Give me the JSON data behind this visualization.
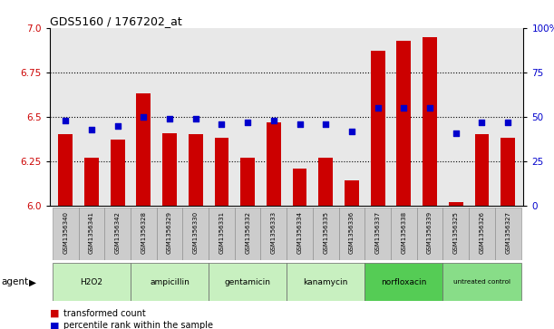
{
  "title": "GDS5160 / 1767202_at",
  "samples": [
    "GSM1356340",
    "GSM1356341",
    "GSM1356342",
    "GSM1356328",
    "GSM1356329",
    "GSM1356330",
    "GSM1356331",
    "GSM1356332",
    "GSM1356333",
    "GSM1356334",
    "GSM1356335",
    "GSM1356336",
    "GSM1356337",
    "GSM1356338",
    "GSM1356339",
    "GSM1356325",
    "GSM1356326",
    "GSM1356327"
  ],
  "bar_values": [
    6.4,
    6.27,
    6.37,
    6.63,
    6.41,
    6.4,
    6.38,
    6.27,
    6.47,
    6.21,
    6.27,
    6.14,
    6.87,
    6.93,
    6.95,
    6.02,
    6.4,
    6.38
  ],
  "blue_values": [
    48,
    43,
    45,
    50,
    49,
    49,
    46,
    47,
    48,
    46,
    46,
    42,
    55,
    55,
    55,
    41,
    47,
    47
  ],
  "agents": [
    {
      "label": "H2O2",
      "start": 0,
      "end": 3,
      "color": "#c8f0c0"
    },
    {
      "label": "ampicillin",
      "start": 3,
      "end": 6,
      "color": "#c8f0c0"
    },
    {
      "label": "gentamicin",
      "start": 6,
      "end": 9,
      "color": "#c8f0c0"
    },
    {
      "label": "kanamycin",
      "start": 9,
      "end": 12,
      "color": "#c8f0c0"
    },
    {
      "label": "norfloxacin",
      "start": 12,
      "end": 15,
      "color": "#55cc55"
    },
    {
      "label": "untreated control",
      "start": 15,
      "end": 18,
      "color": "#88dd88"
    }
  ],
  "ylim_left": [
    6.0,
    7.0
  ],
  "ylim_right": [
    0,
    100
  ],
  "yticks_left": [
    6.0,
    6.25,
    6.5,
    6.75,
    7.0
  ],
  "yticks_right": [
    0,
    25,
    50,
    75,
    100
  ],
  "bar_color": "#cc0000",
  "dot_color": "#0000cc",
  "plot_bg": "#e8e8e8",
  "sample_bg": "#cccccc",
  "grid_lines": [
    6.25,
    6.5,
    6.75
  ]
}
